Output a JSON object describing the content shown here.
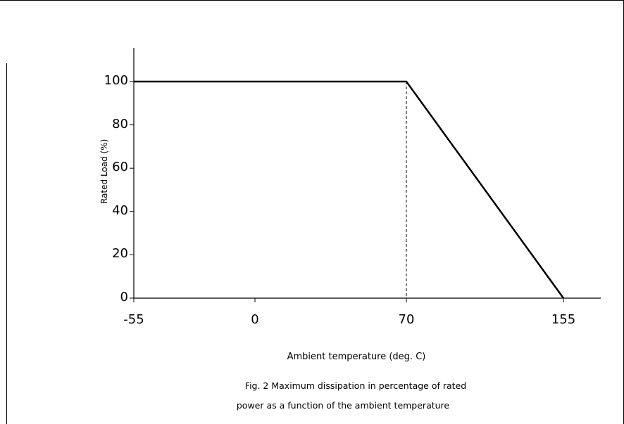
{
  "chart_data": {
    "type": "line",
    "xlabel": "Ambient temperature (deg. C)",
    "ylabel": "Rated Load (%)",
    "x_ticks": [
      "-55",
      "0",
      "70",
      "155"
    ],
    "y_ticks": [
      "0",
      "20",
      "40",
      "60",
      "80",
      "100"
    ],
    "xlim": [
      -55,
      155
    ],
    "ylim": [
      0,
      100
    ],
    "grid": false,
    "series": [
      {
        "x": [
          -55,
          70,
          155
        ],
        "y": [
          100,
          100,
          0
        ]
      }
    ],
    "reference_lines": [
      {
        "style": "dashed",
        "x": 70,
        "y_from": 0,
        "y_to": 100
      }
    ]
  },
  "caption": {
    "line1": "Fig. 2 Maximum dissipation in percentage of rated",
    "line2": "power as a function of the ambient temperature"
  }
}
